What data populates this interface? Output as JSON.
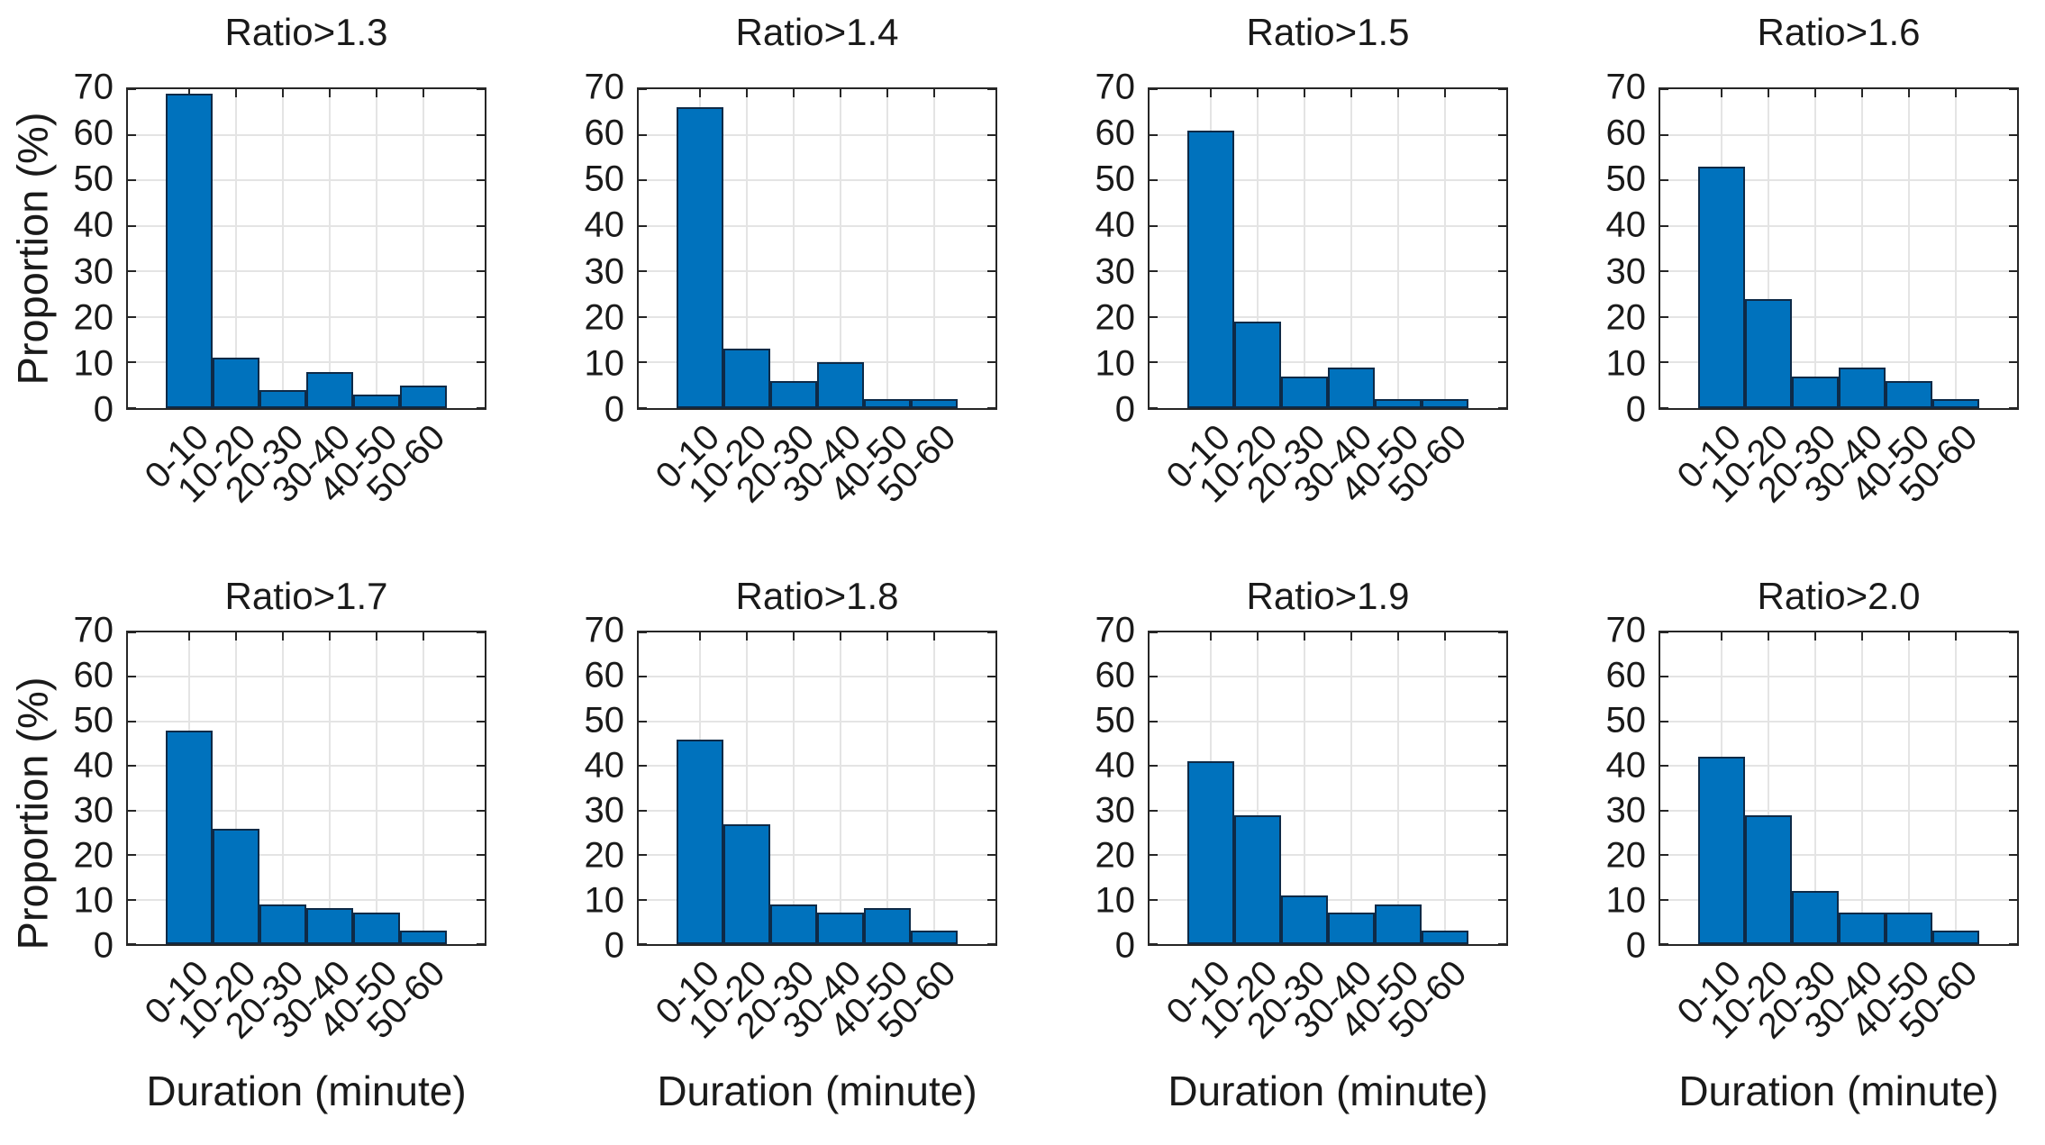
{
  "figure": {
    "ylabel": "Proportion (%)",
    "xlabel": "Duration (minute)",
    "categories": [
      "0-10",
      "10-20",
      "20-30",
      "30-40",
      "40-50",
      "50-60"
    ],
    "yticks": [
      0,
      10,
      20,
      30,
      40,
      50,
      60,
      70
    ],
    "ylim": [
      0,
      70
    ],
    "grid": true,
    "colors": {
      "bar_fill": "#0072BD",
      "bar_edge": "#0e2a47",
      "grid_line": "#e4e4e4",
      "axis_line": "#262626",
      "text": "#1a1a1a",
      "background": "#ffffff"
    }
  },
  "chart_data": [
    {
      "type": "bar",
      "title": "Ratio>1.3",
      "categories": [
        "0-10",
        "10-20",
        "20-30",
        "30-40",
        "40-50",
        "50-60"
      ],
      "values": [
        69,
        11,
        4,
        8,
        3,
        5
      ],
      "ylabel": "Proportion (%)",
      "xlabel": "",
      "ylim": [
        0,
        70
      ]
    },
    {
      "type": "bar",
      "title": "Ratio>1.4",
      "categories": [
        "0-10",
        "10-20",
        "20-30",
        "30-40",
        "40-50",
        "50-60"
      ],
      "values": [
        66,
        13,
        6,
        10,
        2,
        2
      ],
      "ylabel": "",
      "xlabel": "",
      "ylim": [
        0,
        70
      ]
    },
    {
      "type": "bar",
      "title": "Ratio>1.5",
      "categories": [
        "0-10",
        "10-20",
        "20-30",
        "30-40",
        "40-50",
        "50-60"
      ],
      "values": [
        61,
        19,
        7,
        9,
        2,
        2
      ],
      "ylabel": "",
      "xlabel": "",
      "ylim": [
        0,
        70
      ]
    },
    {
      "type": "bar",
      "title": "Ratio>1.6",
      "categories": [
        "0-10",
        "10-20",
        "20-30",
        "30-40",
        "40-50",
        "50-60"
      ],
      "values": [
        53,
        24,
        7,
        9,
        6,
        2
      ],
      "ylabel": "",
      "xlabel": "",
      "ylim": [
        0,
        70
      ]
    },
    {
      "type": "bar",
      "title": "Ratio>1.7",
      "categories": [
        "0-10",
        "10-20",
        "20-30",
        "30-40",
        "40-50",
        "50-60"
      ],
      "values": [
        48,
        26,
        9,
        8,
        7,
        3
      ],
      "ylabel": "Proportion (%)",
      "xlabel": "Duration (minute)",
      "ylim": [
        0,
        70
      ]
    },
    {
      "type": "bar",
      "title": "Ratio>1.8",
      "categories": [
        "0-10",
        "10-20",
        "20-30",
        "30-40",
        "40-50",
        "50-60"
      ],
      "values": [
        46,
        27,
        9,
        7,
        8,
        3
      ],
      "ylabel": "",
      "xlabel": "Duration (minute)",
      "ylim": [
        0,
        70
      ]
    },
    {
      "type": "bar",
      "title": "Ratio>1.9",
      "categories": [
        "0-10",
        "10-20",
        "20-30",
        "30-40",
        "40-50",
        "50-60"
      ],
      "values": [
        41,
        29,
        11,
        7,
        9,
        3
      ],
      "ylabel": "",
      "xlabel": "Duration (minute)",
      "ylim": [
        0,
        70
      ]
    },
    {
      "type": "bar",
      "title": "Ratio>2.0",
      "categories": [
        "0-10",
        "10-20",
        "20-30",
        "30-40",
        "40-50",
        "50-60"
      ],
      "values": [
        42,
        29,
        12,
        7,
        7,
        3
      ],
      "ylabel": "",
      "xlabel": "Duration (minute)",
      "ylim": [
        0,
        70
      ]
    }
  ]
}
